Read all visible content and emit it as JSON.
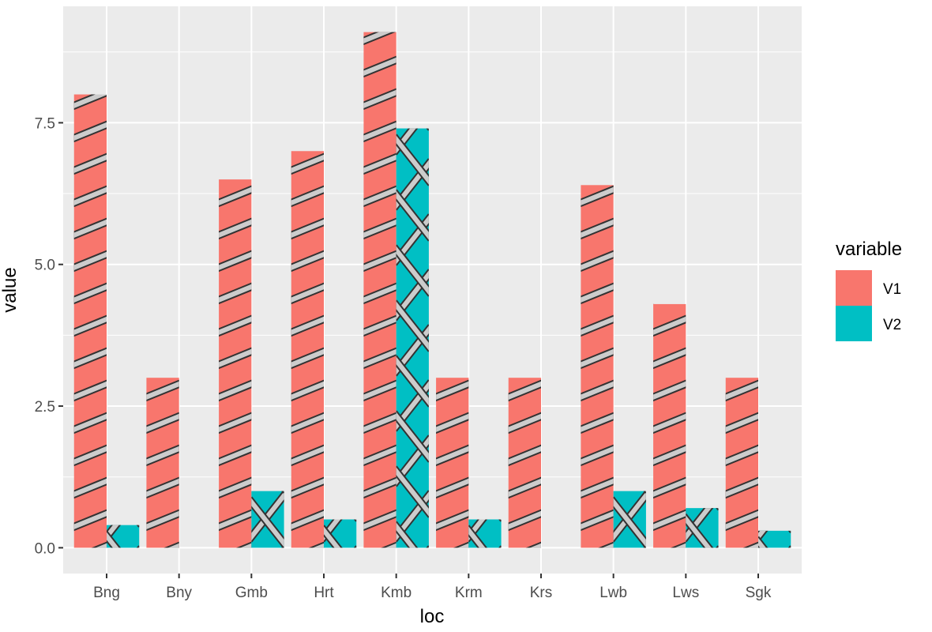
{
  "chart_data": {
    "type": "bar",
    "categories": [
      "Bng",
      "Bny",
      "Gmb",
      "Hrt",
      "Kmb",
      "Krm",
      "Krs",
      "Lwb",
      "Lws",
      "Sgk"
    ],
    "series": [
      {
        "name": "V1",
        "values": [
          8.0,
          3.0,
          6.5,
          7.0,
          9.1,
          3.0,
          3.0,
          6.4,
          4.3,
          3.0
        ]
      },
      {
        "name": "V2",
        "values": [
          0.4,
          0.0,
          1.0,
          0.5,
          7.4,
          0.5,
          0.0,
          1.0,
          0.7,
          0.3
        ]
      }
    ],
    "xlabel": "loc",
    "ylabel": "value",
    "y_ticks": [
      0.0,
      2.5,
      5.0,
      7.5
    ],
    "y_tick_labels": [
      "0.0",
      "2.5",
      "5.0",
      "7.5"
    ],
    "ylim": [
      -0.455,
      9.555
    ],
    "grid": true,
    "legend": {
      "title": "variable",
      "position": "right"
    },
    "colors": {
      "V1": "#f8766d",
      "V2": "#00bfc4"
    },
    "pattern": {
      "V1": "stripe-up",
      "V2": "crosshatch",
      "fill": "#cccccc",
      "stroke": "#333333"
    }
  }
}
